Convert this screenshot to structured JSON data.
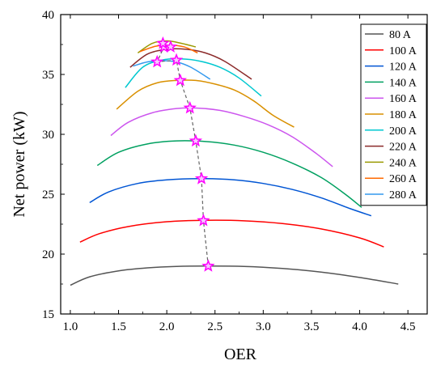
{
  "chart_data": {
    "type": "line",
    "title": "",
    "xlabel": "OER",
    "ylabel": "Net power (kW)",
    "xlim": [
      0.9,
      4.7
    ],
    "ylim": [
      15,
      40
    ],
    "xticks": [
      1.0,
      1.5,
      2.0,
      2.5,
      3.0,
      3.5,
      4.0,
      4.5
    ],
    "xtick_labels": [
      "1.0",
      "1.5",
      "2.0",
      "2.5",
      "3.0",
      "3.5",
      "4.0",
      "4.5"
    ],
    "yticks": [
      15,
      20,
      25,
      30,
      35,
      40
    ],
    "ytick_labels": [
      "15",
      "20",
      "25",
      "30",
      "35",
      "40"
    ],
    "grid": false,
    "legend_position": "top-right",
    "series": [
      {
        "name": "80 A",
        "color": "#555555",
        "x": [
          1.0,
          1.2,
          1.5,
          1.8,
          2.1,
          2.4,
          2.8,
          3.2,
          3.6,
          4.0,
          4.4
        ],
        "y": [
          17.4,
          18.1,
          18.6,
          18.85,
          18.97,
          19.0,
          18.97,
          18.8,
          18.5,
          18.05,
          17.5
        ]
      },
      {
        "name": "100 A",
        "color": "#ff0000",
        "x": [
          1.1,
          1.3,
          1.6,
          2.0,
          2.4,
          2.8,
          3.2,
          3.6,
          4.0,
          4.25
        ],
        "y": [
          21.0,
          21.7,
          22.3,
          22.7,
          22.82,
          22.78,
          22.55,
          22.1,
          21.35,
          20.6
        ]
      },
      {
        "name": "120 A",
        "color": "#0055d4",
        "x": [
          1.2,
          1.4,
          1.7,
          2.0,
          2.35,
          2.7,
          3.0,
          3.3,
          3.6,
          3.9,
          4.12
        ],
        "y": [
          24.3,
          25.2,
          25.9,
          26.2,
          26.3,
          26.2,
          25.9,
          25.4,
          24.7,
          23.8,
          23.2
        ]
      },
      {
        "name": "140 A",
        "color": "#00a060",
        "x": [
          1.28,
          1.5,
          1.8,
          2.1,
          2.4,
          2.7,
          3.0,
          3.3,
          3.6,
          3.85,
          4.02
        ],
        "y": [
          27.4,
          28.5,
          29.2,
          29.45,
          29.4,
          29.1,
          28.5,
          27.6,
          26.4,
          25.0,
          23.9
        ]
      },
      {
        "name": "160 A",
        "color": "#cc55ee",
        "x": [
          1.42,
          1.6,
          1.85,
          2.1,
          2.3,
          2.55,
          2.8,
          3.05,
          3.3,
          3.55,
          3.72
        ],
        "y": [
          29.9,
          31.0,
          31.8,
          32.15,
          32.2,
          32.0,
          31.5,
          30.8,
          29.8,
          28.4,
          27.3
        ]
      },
      {
        "name": "180 A",
        "color": "#d99000",
        "x": [
          1.48,
          1.7,
          1.9,
          2.1,
          2.3,
          2.5,
          2.7,
          2.9,
          3.1,
          3.32
        ],
        "y": [
          32.1,
          33.6,
          34.3,
          34.5,
          34.5,
          34.2,
          33.7,
          32.8,
          31.6,
          30.6
        ]
      },
      {
        "name": "200 A",
        "color": "#00c8d0",
        "x": [
          1.57,
          1.75,
          1.95,
          2.15,
          2.35,
          2.55,
          2.75,
          2.98
        ],
        "y": [
          33.9,
          35.6,
          36.2,
          36.3,
          36.1,
          35.6,
          34.7,
          33.2
        ]
      },
      {
        "name": "220 A",
        "color": "#8b2a2a",
        "x": [
          1.62,
          1.8,
          2.0,
          2.2,
          2.4,
          2.6,
          2.88
        ],
        "y": [
          35.6,
          36.7,
          37.1,
          37.1,
          36.8,
          36.1,
          34.6
        ]
      },
      {
        "name": "240 A",
        "color": "#9a9a00",
        "x": [
          1.7,
          1.85,
          2.0,
          2.15,
          2.3
        ],
        "y": [
          36.8,
          37.6,
          37.8,
          37.6,
          37.3
        ]
      },
      {
        "name": "260 A",
        "color": "#ff6a00",
        "x": [
          1.72,
          1.88,
          2.02,
          2.18,
          2.32
        ],
        "y": [
          36.9,
          37.35,
          37.45,
          37.3,
          36.8
        ]
      },
      {
        "name": "280 A",
        "color": "#3399ee",
        "x": [
          1.65,
          1.8,
          1.95,
          2.1,
          2.25,
          2.45
        ],
        "y": [
          35.7,
          36.05,
          36.15,
          36.05,
          35.6,
          34.6
        ]
      }
    ],
    "optimal_points": {
      "name": "",
      "color": "#ff00ff",
      "line_color": "#666666",
      "line_style": "dashed",
      "marker": "star",
      "x": [
        2.43,
        2.38,
        2.36,
        2.3,
        2.24,
        2.14,
        2.1,
        1.9,
        1.97,
        1.96,
        2.04
      ],
      "y": [
        19.0,
        22.8,
        26.3,
        29.45,
        32.2,
        34.5,
        36.2,
        36.05,
        37.3,
        37.6,
        37.3
      ]
    }
  }
}
